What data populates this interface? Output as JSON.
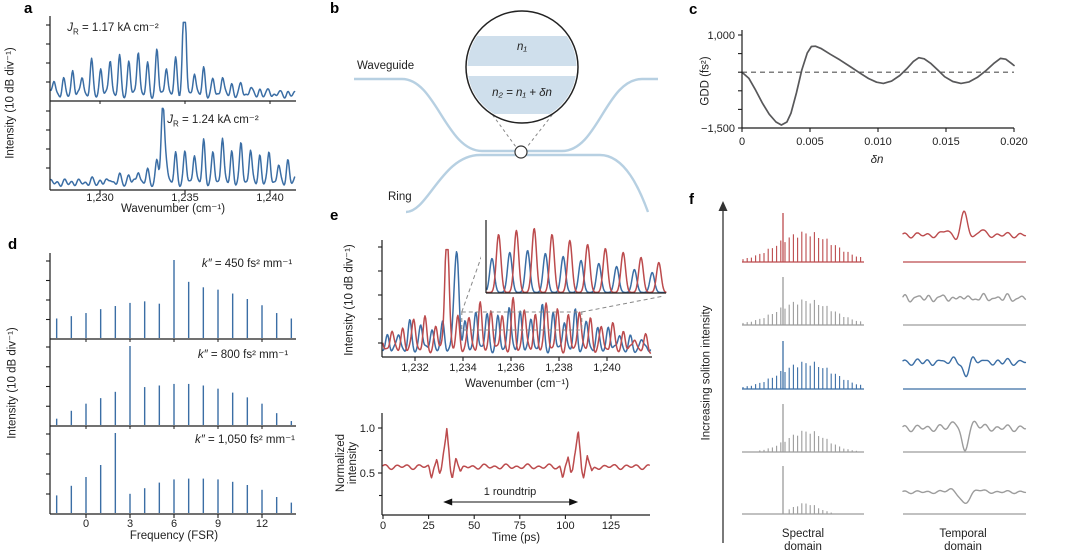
{
  "panels": {
    "a": {
      "letter": "a"
    },
    "b": {
      "letter": "b",
      "waveguide_label": "Waveguide",
      "ring_label": "Ring",
      "n1_label": "n₁",
      "n2_label": "n₂ = n₁ + δn"
    },
    "c": {
      "letter": "c"
    },
    "d": {
      "letter": "d"
    },
    "e": {
      "letter": "e"
    },
    "f": {
      "letter": "f"
    }
  },
  "chart_data": [
    {
      "panel": "a",
      "type": "line",
      "xlabel": "Wavenumber (cm⁻¹)",
      "ylabel": "Intensity (10 dB div⁻¹)",
      "x_ticks": [
        1230,
        1235,
        1240
      ],
      "x_tick_labels": [
        "1,230",
        "1,235",
        "1,240"
      ],
      "x_range": [
        1227.1,
        1241.5
      ],
      "color": "#3b6ea5",
      "subplots": [
        {
          "label_var": "J",
          "label_sub": "R",
          "label_rest": " = 1.17 kA cm⁻²",
          "comb_start": 1227.3,
          "comb_spacing": 0.55,
          "comb_count": 27,
          "env_center": 1232.4,
          "env_sigma": 3.6,
          "env_peak": 0.6,
          "spike_x": 1234.95,
          "spike_h": 0.97
        },
        {
          "label_var": "J",
          "label_sub": "R",
          "label_rest": " = 1.24 kA cm⁻²",
          "comb_start": 1227.3,
          "comb_spacing": 0.55,
          "comb_count": 27,
          "env_center": 1237.2,
          "env_sigma": 3.2,
          "env_peak": 0.58,
          "spike_x": 1233.7,
          "spike_h": 0.95
        }
      ]
    },
    {
      "panel": "c",
      "type": "line",
      "xlabel": "δn",
      "ylabel": "GDD (fs²)",
      "x_ticks": [
        0,
        0.005,
        0.01,
        0.015,
        0.02
      ],
      "x_tick_labels": [
        "0",
        "0.005",
        "0.010",
        "0.015",
        "0.020"
      ],
      "y_ticks": [
        1000,
        -1500
      ],
      "y_tick_labels": [
        "1,000",
        "−1,500"
      ],
      "xlim": [
        0,
        0.02
      ],
      "ylim": [
        -1500,
        1000
      ],
      "zero_line_dashed": true,
      "color": "#58585a",
      "points": [
        [
          0,
          0
        ],
        [
          0.0005,
          -160
        ],
        [
          0.001,
          -480
        ],
        [
          0.0015,
          -830
        ],
        [
          0.002,
          -1130
        ],
        [
          0.0025,
          -1340
        ],
        [
          0.0029,
          -1420
        ],
        [
          0.0033,
          -1340
        ],
        [
          0.0036,
          -1100
        ],
        [
          0.004,
          -560
        ],
        [
          0.0044,
          60
        ],
        [
          0.0048,
          520
        ],
        [
          0.0051,
          690
        ],
        [
          0.0054,
          700
        ],
        [
          0.0058,
          640
        ],
        [
          0.0065,
          480
        ],
        [
          0.0072,
          330
        ],
        [
          0.008,
          140
        ],
        [
          0.0087,
          -30
        ],
        [
          0.0093,
          -170
        ],
        [
          0.0099,
          -270
        ],
        [
          0.0104,
          -300
        ],
        [
          0.011,
          -240
        ],
        [
          0.0116,
          -90
        ],
        [
          0.0121,
          90
        ],
        [
          0.0126,
          290
        ],
        [
          0.013,
          390
        ],
        [
          0.0134,
          360
        ],
        [
          0.0139,
          230
        ],
        [
          0.0144,
          60
        ],
        [
          0.0149,
          -120
        ],
        [
          0.0155,
          -250
        ],
        [
          0.0161,
          -300
        ],
        [
          0.0167,
          -260
        ],
        [
          0.0173,
          -140
        ],
        [
          0.0179,
          30
        ],
        [
          0.0185,
          230
        ],
        [
          0.019,
          370
        ],
        [
          0.0194,
          350
        ],
        [
          0.0198,
          240
        ],
        [
          0.02,
          180
        ]
      ]
    },
    {
      "panel": "d",
      "type": "bar",
      "xlabel": "Frequency (FSR)",
      "ylabel": "Intensity (10 dB div⁻¹)",
      "x_ticks": [
        0,
        3,
        6,
        9,
        12
      ],
      "x_tick_labels": [
        "0",
        "3",
        "6",
        "9",
        "12"
      ],
      "frequencies": [
        -2,
        -1,
        0,
        1,
        2,
        3,
        4,
        5,
        6,
        7,
        8,
        9,
        10,
        11,
        12,
        13,
        14
      ],
      "color": "#3b6ea5",
      "subplots": [
        {
          "label_var": "k″",
          "label_rest": " = 450 fs² mm⁻¹",
          "heights": [
            0.25,
            0.28,
            0.32,
            0.37,
            0.41,
            0.45,
            0.47,
            0.44,
            1.0,
            0.72,
            0.65,
            0.62,
            0.57,
            0.5,
            0.42,
            0.32,
            0.25
          ]
        },
        {
          "label_var": "k″",
          "label_rest": " = 800 fs² mm⁻¹",
          "heights": [
            0.08,
            0.18,
            0.27,
            0.34,
            0.42,
            1.0,
            0.48,
            0.5,
            0.52,
            0.52,
            0.5,
            0.46,
            0.41,
            0.35,
            0.27,
            0.15,
            0.05
          ]
        },
        {
          "label_var": "k″",
          "label_rest": " = 1,050 fs² mm⁻¹",
          "heights": [
            0.22,
            0.34,
            0.45,
            0.6,
            1.0,
            0.24,
            0.31,
            0.38,
            0.42,
            0.43,
            0.43,
            0.42,
            0.39,
            0.35,
            0.29,
            0.2,
            0.13
          ]
        }
      ]
    },
    {
      "panel": "e",
      "type": "line",
      "xlabel": "Wavenumber (cm⁻¹)",
      "ylabel": "Intensity (10 dB div⁻¹)",
      "x_ticks": [
        1232,
        1234,
        1236,
        1238,
        1240
      ],
      "x_tick_labels": [
        "1,232",
        "1,234",
        "1,236",
        "1,238",
        "1,240"
      ],
      "x_range": [
        1230.6,
        1241.8
      ],
      "zoom_box_x": [
        1233.95,
        1238.95
      ],
      "series": [
        {
          "name": "spectrum-red",
          "color": "#bc4b4d",
          "comb_start": 1230.57,
          "comb_spacing": 0.46,
          "spike_x": 1233.33,
          "spike_h": 0.86,
          "env_points": [
            [
              1230.6,
              0.16
            ],
            [
              1231.5,
              0.27
            ],
            [
              1232.4,
              0.33
            ],
            [
              1233.3,
              0.27
            ],
            [
              1234.3,
              0.42
            ],
            [
              1236,
              0.45
            ],
            [
              1237.5,
              0.44
            ],
            [
              1238.6,
              0.41
            ],
            [
              1239.6,
              0.3
            ],
            [
              1240.7,
              0.2
            ],
            [
              1241.8,
              0.1
            ]
          ]
        },
        {
          "name": "spectrum-blue",
          "color": "#3b6ea5",
          "comb_start": 1230.4,
          "comb_spacing": 0.46,
          "spike_x": 1233.75,
          "spike_h": 0.8,
          "env_points": [
            [
              1230.6,
              0.13
            ],
            [
              1231.5,
              0.23
            ],
            [
              1232.4,
              0.29
            ],
            [
              1233.3,
              0.24
            ],
            [
              1234.3,
              0.37
            ],
            [
              1236,
              0.41
            ],
            [
              1237.5,
              0.4
            ],
            [
              1238.6,
              0.37
            ],
            [
              1239.6,
              0.26
            ],
            [
              1240.7,
              0.16
            ],
            [
              1241.8,
              0.08
            ]
          ]
        }
      ],
      "inset": {
        "red_heights": [
          58,
          62,
          64,
          58,
          52,
          48,
          44,
          40,
          35,
          30
        ],
        "blue_heights": [
          34,
          40,
          42,
          39,
          36,
          32,
          29,
          26,
          23,
          20
        ]
      }
    },
    {
      "panel": "e",
      "type": "line",
      "xlabel": "Time (ps)",
      "ylabel": "Normalized intensity",
      "x_ticks": [
        0,
        25,
        50,
        75,
        100,
        125
      ],
      "x_tick_labels": [
        "0",
        "25",
        "50",
        "75",
        "100",
        "125"
      ],
      "y_ticks": [
        1.0,
        0.5
      ],
      "y_tick_labels": [
        "1.0",
        "0.5"
      ],
      "xlim": [
        0,
        146
      ],
      "baseline": 0.57,
      "color": "#bc4b4d",
      "annotation": "1 roundtrip",
      "roundtrip_span_ps": [
        33,
        107
      ],
      "pulse_centers": [
        35,
        107
      ],
      "pulse_shape": [
        [
          -10,
          0
        ],
        [
          -8.5,
          -0.13
        ],
        [
          -7,
          0.02
        ],
        [
          -5.5,
          0.1
        ],
        [
          -4,
          -0.1
        ],
        [
          -3,
          -0.05
        ],
        [
          -2,
          0.12
        ],
        [
          -1,
          0.27
        ],
        [
          0,
          0.43
        ],
        [
          1,
          0.2
        ],
        [
          2,
          -0.06
        ],
        [
          3,
          -0.14
        ],
        [
          4,
          0
        ],
        [
          5,
          0.13
        ],
        [
          6,
          0.05
        ],
        [
          7.5,
          -0.07
        ],
        [
          9,
          -0.02
        ],
        [
          10.5,
          0
        ]
      ],
      "ripple": {
        "amp1": 0.018,
        "freq1": 1.05,
        "amp2": 0.012,
        "freq2": 0.55
      }
    },
    {
      "panel": "f",
      "type": "area",
      "axis_label": "Increasing soliton intensity",
      "column_labels": [
        "Spectral domain",
        "Temporal domain"
      ],
      "rows": [
        {
          "name": "soliton-crystal",
          "color": "#bc4b4d",
          "spectral": {
            "spike_h": 49,
            "env_h": 31,
            "env_center": 0.52,
            "env_sigma": 0.23
          },
          "temporal": {
            "kind": "bright-pulse",
            "feature_h": 22,
            "ripple": 2.2
          }
        },
        {
          "name": "intermediate-state-1",
          "color": "#9c9c9c",
          "spectral": {
            "spike_h": 48,
            "env_h": 26,
            "env_center": 0.52,
            "env_sigma": 0.22
          },
          "temporal": {
            "kind": "ripples",
            "feature_h": 5,
            "ripple": 2.5
          }
        },
        {
          "name": "dark-soliton",
          "color": "#3b6ea5",
          "spectral": {
            "spike_h": 48,
            "env_h": 28,
            "env_center": 0.53,
            "env_sigma": 0.22
          },
          "temporal": {
            "kind": "shallow-dip",
            "feature_h": 15,
            "ripple": 2.5
          }
        },
        {
          "name": "intermediate-state-2",
          "color": "#9c9c9c",
          "spectral": {
            "spike_h": 48,
            "env_h": 22,
            "env_center": 0.53,
            "env_sigma": 0.16
          },
          "temporal": {
            "kind": "deep-dip",
            "feature_h": 25,
            "ripple": 2.8
          }
        },
        {
          "name": "weak-soliton",
          "color": "#9c9c9c",
          "spectral": {
            "spike_h": 48,
            "env_h": 11,
            "env_center": 0.52,
            "env_sigma": 0.1,
            "cut_left": 786
          },
          "temporal": {
            "kind": "smooth-dip",
            "feature_h": 12,
            "ripple": 1.2
          }
        }
      ]
    }
  ]
}
